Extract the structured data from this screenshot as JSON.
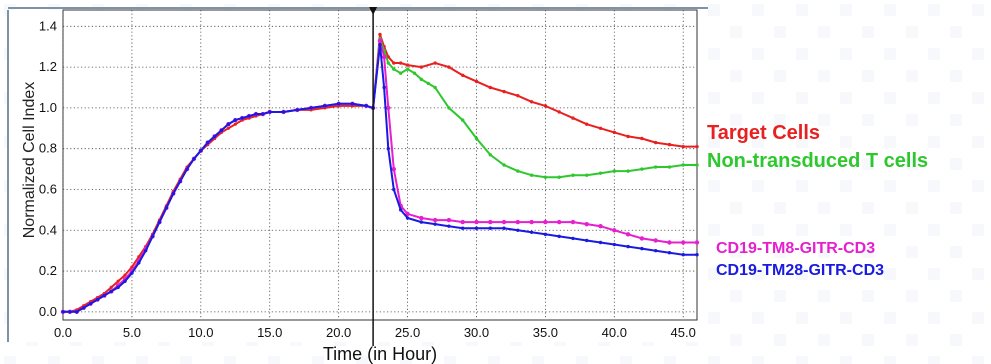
{
  "colors": {
    "target": "#e82020",
    "nontrans": "#2ec82e",
    "tm8": "#e61fcf",
    "tm28": "#1a1ae0",
    "frame": "#7f93a6",
    "grid": "#444444",
    "background_pattern": "#eef2f7"
  },
  "chart_data": {
    "type": "line",
    "title": "",
    "xlabel": "Time (in Hour)",
    "ylabel": "Normalized Cell Index",
    "xlim": [
      0,
      46
    ],
    "ylim": [
      -0.04,
      1.48
    ],
    "x_ticks": [
      "0.0",
      "5.0",
      "10.0",
      "15.0",
      "20.0",
      "25.0",
      "30.0",
      "35.0",
      "40.0",
      "45.0"
    ],
    "y_ticks": [
      "0.0",
      "0.2",
      "0.4",
      "0.6",
      "0.8",
      "1.0",
      "1.2",
      "1.4"
    ],
    "grid": true,
    "grid_style": "dotted",
    "vertical_marker_x": 22.5,
    "legend_placement": "right",
    "baseline": {
      "x": [
        0,
        0.5,
        1,
        1.5,
        2,
        2.5,
        3,
        3.5,
        4,
        4.5,
        5,
        5.5,
        6,
        6.5,
        7,
        7.5,
        8,
        8.5,
        9,
        9.5,
        10,
        10.5,
        11,
        11.5,
        12,
        12.5,
        13,
        13.5,
        14,
        14.5,
        15,
        16,
        17,
        18,
        19,
        20,
        21,
        22,
        22.5
      ],
      "values": [
        0.0,
        0.0,
        0.01,
        0.03,
        0.05,
        0.07,
        0.09,
        0.12,
        0.15,
        0.18,
        0.22,
        0.27,
        0.32,
        0.38,
        0.45,
        0.52,
        0.59,
        0.65,
        0.71,
        0.75,
        0.79,
        0.82,
        0.85,
        0.88,
        0.9,
        0.92,
        0.94,
        0.95,
        0.96,
        0.97,
        0.98,
        0.98,
        0.99,
        0.99,
        1.0,
        1.01,
        1.01,
        1.01,
        1.0
      ]
    },
    "series": [
      {
        "name": "Target Cells",
        "x": [
          22.5,
          23.0,
          23.3,
          23.6,
          24.0,
          24.5,
          25.0,
          26.0,
          27.0,
          28.0,
          29.0,
          30.0,
          31.0,
          32.0,
          33.0,
          34.0,
          35.0,
          36.0,
          37.0,
          38.0,
          39.0,
          40.0,
          41.0,
          42.0,
          43.0,
          44.0,
          45.0,
          46.0
        ],
        "values": [
          1.0,
          1.36,
          1.3,
          1.25,
          1.22,
          1.22,
          1.21,
          1.2,
          1.22,
          1.2,
          1.16,
          1.13,
          1.1,
          1.08,
          1.06,
          1.03,
          1.01,
          0.98,
          0.95,
          0.92,
          0.9,
          0.88,
          0.86,
          0.85,
          0.83,
          0.82,
          0.81,
          0.81
        ]
      },
      {
        "name": "Non-transduced T cells",
        "x": [
          22.5,
          23.0,
          23.3,
          23.6,
          24.0,
          24.5,
          25.0,
          25.5,
          26.0,
          26.5,
          27.0,
          28.0,
          29.0,
          30.0,
          31.0,
          32.0,
          33.0,
          34.0,
          35.0,
          36.0,
          37.0,
          38.0,
          39.0,
          40.0,
          41.0,
          42.0,
          43.0,
          44.0,
          45.0,
          46.0
        ],
        "values": [
          1.0,
          1.34,
          1.28,
          1.22,
          1.19,
          1.17,
          1.19,
          1.17,
          1.14,
          1.12,
          1.1,
          1.0,
          0.94,
          0.85,
          0.77,
          0.72,
          0.69,
          0.67,
          0.66,
          0.66,
          0.67,
          0.67,
          0.68,
          0.69,
          0.69,
          0.7,
          0.71,
          0.71,
          0.72,
          0.72
        ]
      },
      {
        "name": "CD19-TM8-GITR-CD3",
        "x": [
          0,
          0.5,
          1,
          1.5,
          2,
          2.5,
          3,
          3.5,
          4,
          4.5,
          5,
          5.5,
          6,
          6.5,
          7,
          7.5,
          8,
          8.5,
          9,
          9.5,
          10,
          10.5,
          11,
          11.5,
          12,
          12.5,
          13,
          13.5,
          14,
          14.5,
          15,
          16,
          17,
          18,
          19,
          20,
          21,
          22,
          22.5,
          23.0,
          23.3,
          23.6,
          24.0,
          24.5,
          25.0,
          26.0,
          27.0,
          28.0,
          29.0,
          30.0,
          31.0,
          32.0,
          33.0,
          34.0,
          35.0,
          36.0,
          37.0,
          38.0,
          39.0,
          40.0,
          41.0,
          42.0,
          43.0,
          44.0,
          45.0,
          46.0
        ],
        "values": [
          0.0,
          0.0,
          0.0,
          0.02,
          0.04,
          0.06,
          0.08,
          0.1,
          0.13,
          0.16,
          0.2,
          0.25,
          0.31,
          0.37,
          0.44,
          0.51,
          0.58,
          0.64,
          0.7,
          0.75,
          0.79,
          0.83,
          0.86,
          0.89,
          0.92,
          0.94,
          0.95,
          0.96,
          0.97,
          0.97,
          0.98,
          0.98,
          0.99,
          1.0,
          1.01,
          1.02,
          1.02,
          1.01,
          1.0,
          1.33,
          1.25,
          1.0,
          0.7,
          0.52,
          0.48,
          0.46,
          0.45,
          0.45,
          0.44,
          0.44,
          0.44,
          0.44,
          0.44,
          0.44,
          0.44,
          0.44,
          0.44,
          0.43,
          0.42,
          0.4,
          0.38,
          0.36,
          0.35,
          0.34,
          0.34,
          0.34
        ]
      },
      {
        "name": "CD19-TM28-GITR-CD3",
        "x": [
          0,
          0.5,
          1,
          1.5,
          2,
          2.5,
          3,
          3.5,
          4,
          4.5,
          5,
          5.5,
          6,
          6.5,
          7,
          7.5,
          8,
          8.5,
          9,
          9.5,
          10,
          10.5,
          11,
          11.5,
          12,
          12.5,
          13,
          13.5,
          14,
          14.5,
          15,
          16,
          17,
          18,
          19,
          20,
          21,
          22,
          22.5,
          23.0,
          23.3,
          23.6,
          24.0,
          24.5,
          25.0,
          26.0,
          27.0,
          28.0,
          29.0,
          30.0,
          31.0,
          32.0,
          33.0,
          34.0,
          35.0,
          36.0,
          37.0,
          38.0,
          39.0,
          40.0,
          41.0,
          42.0,
          43.0,
          44.0,
          45.0,
          46.0
        ],
        "values": [
          0.0,
          0.0,
          0.0,
          0.02,
          0.04,
          0.06,
          0.08,
          0.1,
          0.12,
          0.15,
          0.19,
          0.24,
          0.3,
          0.37,
          0.44,
          0.51,
          0.58,
          0.64,
          0.7,
          0.75,
          0.79,
          0.83,
          0.86,
          0.89,
          0.92,
          0.94,
          0.95,
          0.96,
          0.97,
          0.97,
          0.98,
          0.98,
          0.99,
          1.0,
          1.01,
          1.02,
          1.02,
          1.01,
          1.0,
          1.31,
          1.1,
          0.8,
          0.6,
          0.5,
          0.46,
          0.44,
          0.43,
          0.42,
          0.41,
          0.41,
          0.41,
          0.41,
          0.4,
          0.39,
          0.38,
          0.37,
          0.36,
          0.35,
          0.34,
          0.33,
          0.32,
          0.31,
          0.3,
          0.29,
          0.28,
          0.28
        ]
      }
    ]
  }
}
